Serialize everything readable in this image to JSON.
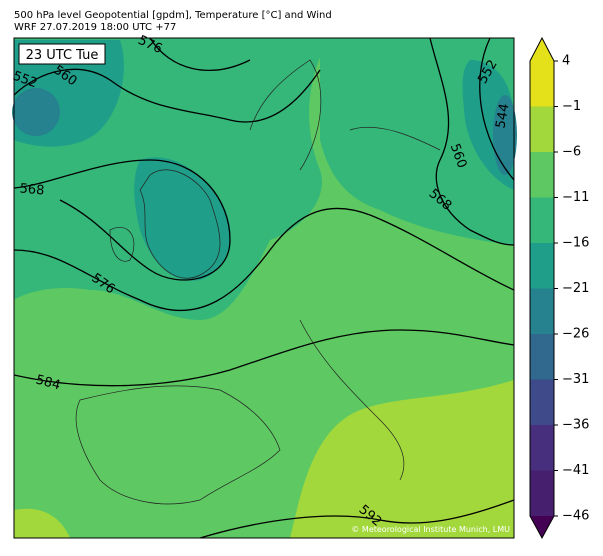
{
  "header": {
    "title": "500 hPa level Geopotential [gpdm], Temperature [°C] and Wind",
    "subtitle": "WRF 27.07.2019 18:00 UTC +77"
  },
  "map": {
    "time_label": "23 UTC Tue",
    "credit": "© Meteorological Institute Munich, LMU",
    "contour_labels": [
      "576",
      "552",
      "560",
      "568",
      "576",
      "584",
      "592",
      "552",
      "544",
      "560",
      "568"
    ]
  },
  "colorbar": {
    "ticks": [
      {
        "value": 4,
        "label": "4"
      },
      {
        "value": -1,
        "label": "−1"
      },
      {
        "value": -6,
        "label": "−6"
      },
      {
        "value": -11,
        "label": "−11"
      },
      {
        "value": -16,
        "label": "−16"
      },
      {
        "value": -21,
        "label": "−21"
      },
      {
        "value": -26,
        "label": "−26"
      },
      {
        "value": -31,
        "label": "−31"
      },
      {
        "value": -36,
        "label": "−36"
      },
      {
        "value": -41,
        "label": "−41"
      },
      {
        "value": -46,
        "label": "−46"
      }
    ],
    "colors": [
      "#440154",
      "#46206f",
      "#482f7e",
      "#3e4a89",
      "#31688e",
      "#26828e",
      "#1f9e89",
      "#35b779",
      "#5ec962",
      "#a2d83c",
      "#e4e11b",
      "#e4e11b"
    ]
  }
}
